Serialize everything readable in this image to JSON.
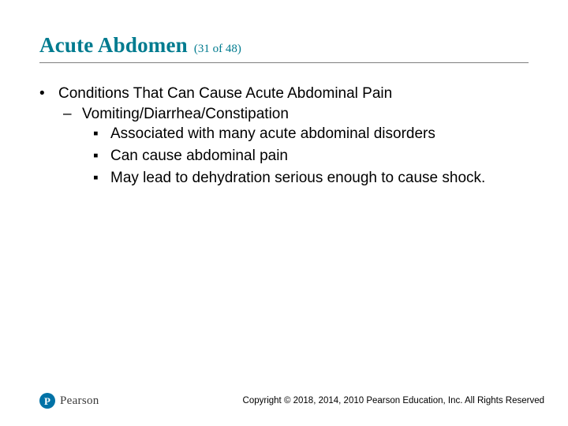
{
  "colors": {
    "title": "#007b8f",
    "rule": "#7f7f7f",
    "text": "#000000",
    "logo_bg": "#0072a6",
    "background": "#ffffff"
  },
  "title": "Acute Abdomen",
  "page_indicator": "(31 of 48)",
  "bullets": {
    "lvl1": {
      "marker": "•",
      "text": "Conditions That Can Cause Acute Abdominal Pain"
    },
    "lvl2": {
      "marker": "–",
      "text": "Vomiting/Diarrhea/Constipation"
    },
    "lvl3": [
      {
        "marker": "▪",
        "text": "Associated with many acute abdominal disorders"
      },
      {
        "marker": "▪",
        "text": "Can cause abdominal pain"
      },
      {
        "marker": "▪",
        "text": "May lead to dehydration serious enough to cause shock."
      }
    ]
  },
  "logo": {
    "letter": "P",
    "name": "Pearson"
  },
  "copyright": "Copyright © 2018, 2014, 2010 Pearson Education, Inc. All Rights Reserved"
}
